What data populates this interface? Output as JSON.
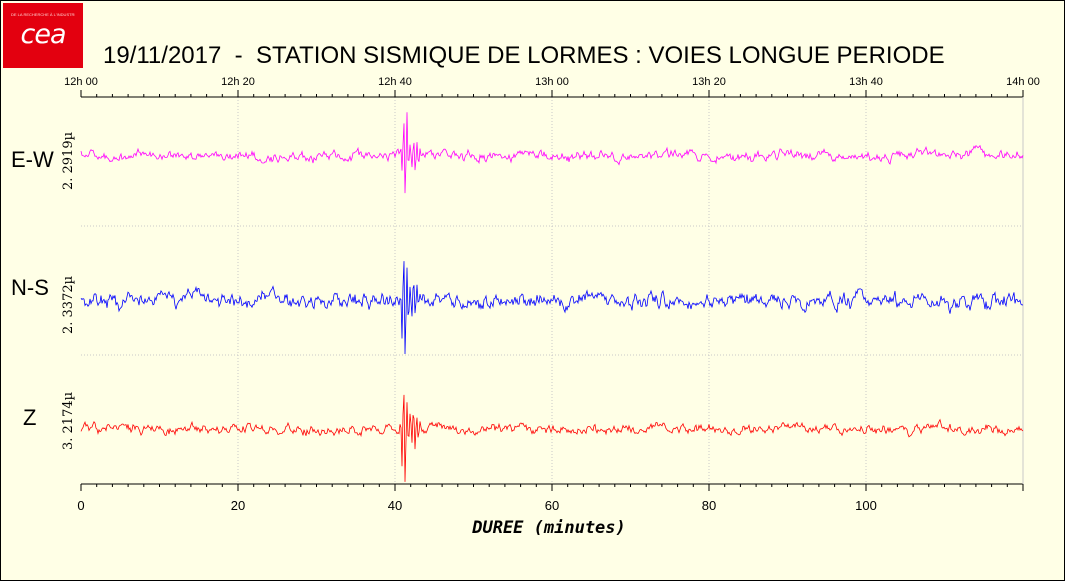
{
  "logo": {
    "tagline": "DE LA RECHERCHE À L'INDUSTRIE",
    "text": "cea"
  },
  "title": "19/11/2017  -  STATION SISMIQUE DE LORMES : VOIES LONGUE PERIODE",
  "chart_data": {
    "type": "line",
    "title": "19/11/2017  -  STATION SISMIQUE DE LORMES : VOIES LONGUE PERIODE",
    "xlabel": "DUREE (minutes)",
    "xlim": [
      0,
      120
    ],
    "top_axis_ticks": [
      "12h 00",
      "12h 20",
      "12h 40",
      "13h 00",
      "13h 20",
      "13h 40",
      "14h 00"
    ],
    "bottom_axis_ticks": [
      0,
      20,
      40,
      60,
      80,
      100
    ],
    "grid": true,
    "series": [
      {
        "name": "E-W",
        "scale_label": "2. 2919µ",
        "color": "#ff00ff",
        "event_minute": 41.3,
        "amplitude_note": "signal trace"
      },
      {
        "name": "N-S",
        "scale_label": "2. 3372µ",
        "color": "#0000ff",
        "event_minute": 41.2,
        "amplitude_note": "signal trace"
      },
      {
        "name": "Z",
        "scale_label": "3. 2174µ",
        "color": "#ff0000",
        "event_minute": 41.2,
        "amplitude_note": "signal trace"
      }
    ]
  }
}
